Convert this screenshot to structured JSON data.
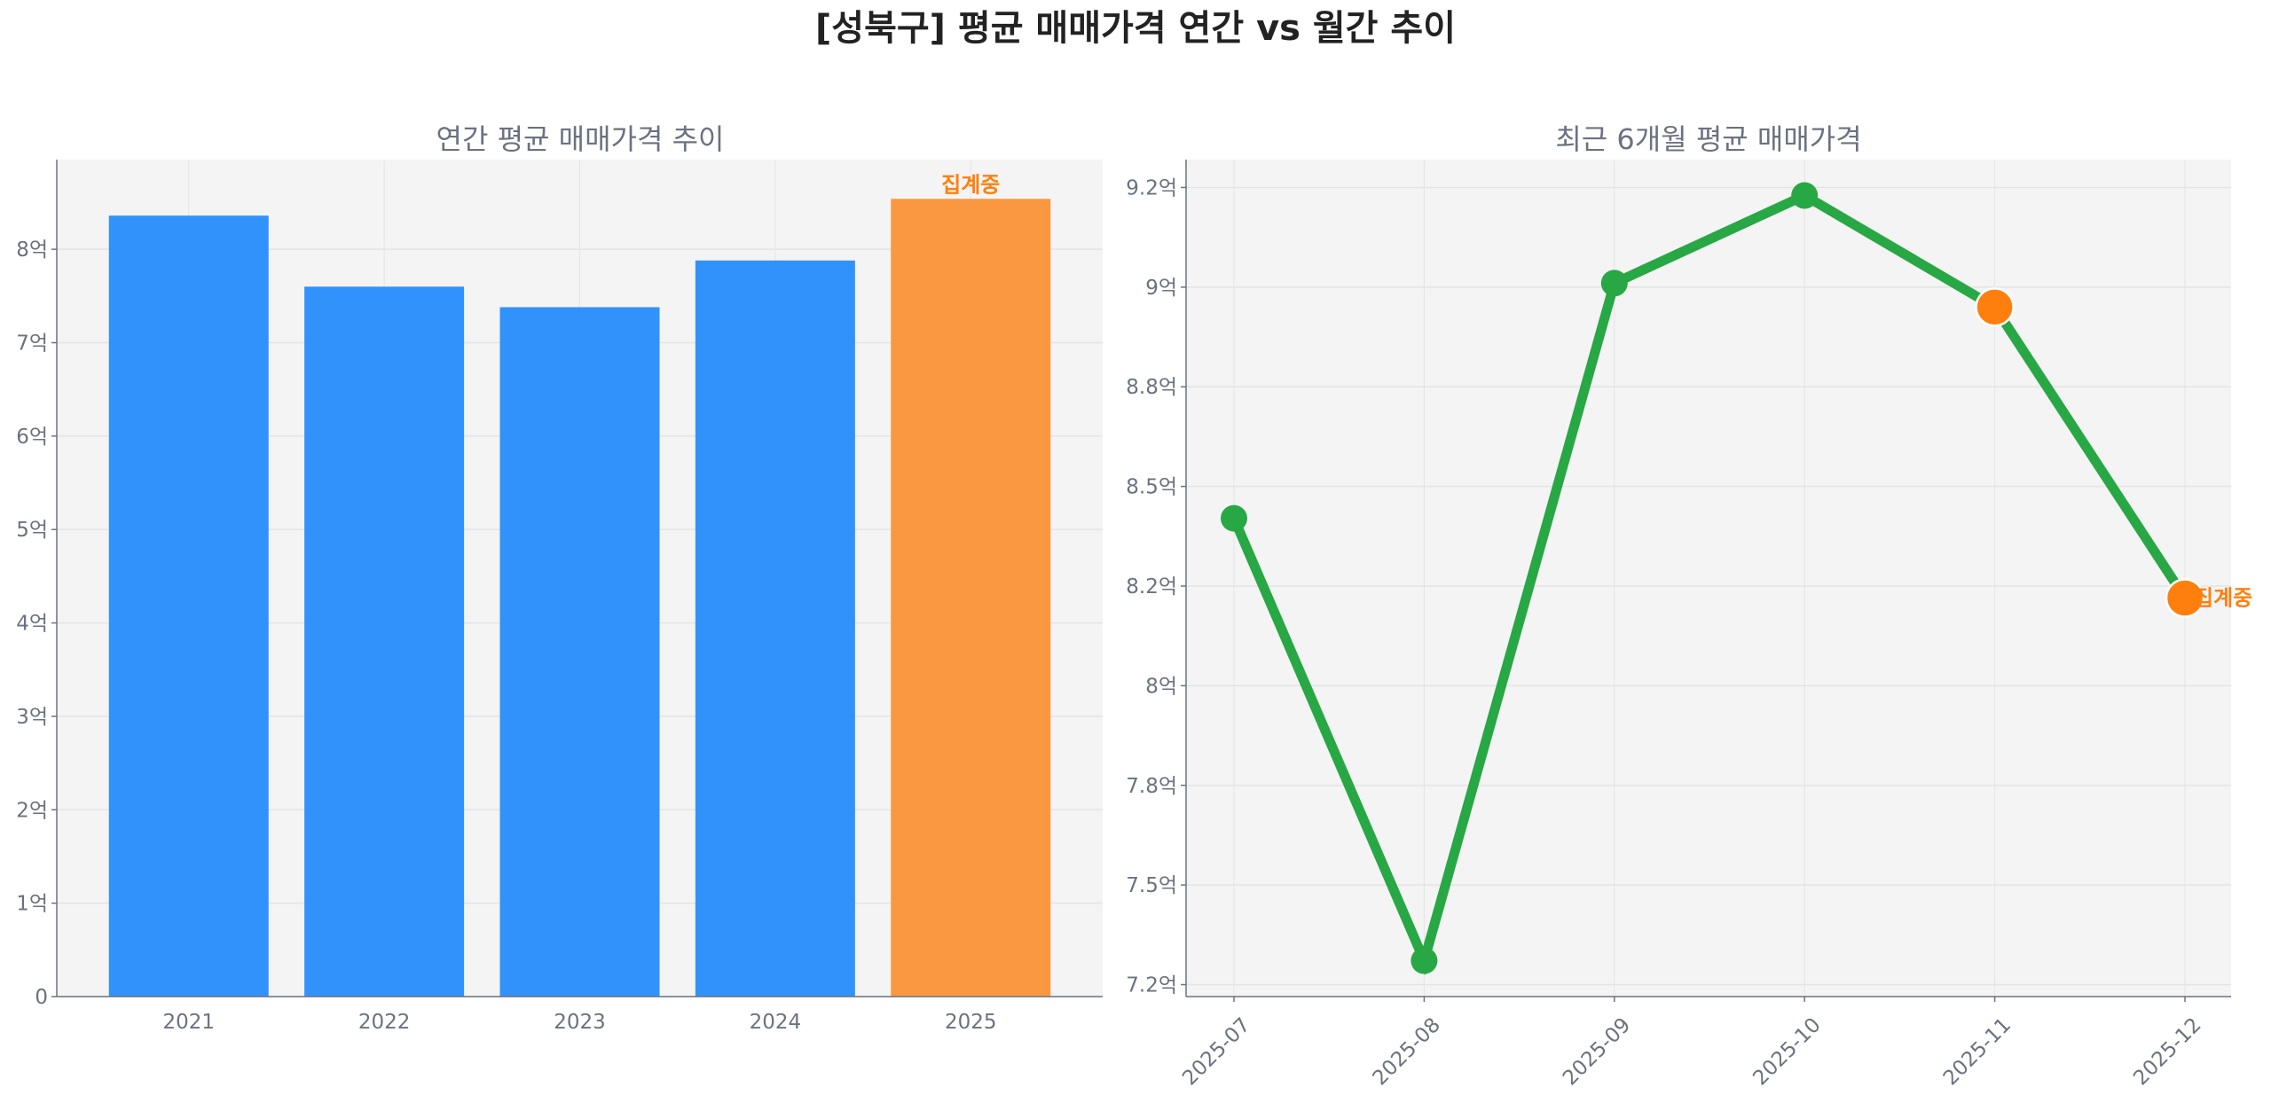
{
  "title": "[성북구] 평균 매매가격 연간 vs 월간 추이",
  "chart_data": [
    {
      "type": "bar",
      "title": "연간 평균 매매가격 추이",
      "categories": [
        "2021",
        "2022",
        "2023",
        "2024",
        "2025"
      ],
      "values": [
        8.36,
        7.6,
        7.38,
        7.88,
        8.54
      ],
      "unit": "억",
      "bar_colors": [
        "#3192fb",
        "#3192fb",
        "#3192fb",
        "#3192fb",
        "#f99841"
      ],
      "annotations": [
        {
          "category": "2025",
          "text": "집계중"
        }
      ],
      "ylim": [
        0,
        8.96
      ],
      "yticks": [
        0,
        1,
        2,
        3,
        4,
        5,
        6,
        7,
        8
      ],
      "ytick_labels": [
        "0",
        "1억",
        "2억",
        "3억",
        "4억",
        "5억",
        "6억",
        "7억",
        "8억"
      ],
      "grid": true,
      "xlabel": "",
      "ylabel": ""
    },
    {
      "type": "line",
      "title": "최근 6개월 평균 매매가격",
      "x": [
        "2025-07",
        "2025-08",
        "2025-09",
        "2025-10",
        "2025-11",
        "2025-12"
      ],
      "values": [
        8.42,
        7.31,
        9.01,
        9.23,
        8.95,
        8.22
      ],
      "unit": "억",
      "line_color": "#28a745",
      "highlight_points": [
        "2025-11",
        "2025-12"
      ],
      "highlight_color": "#ff7f0e",
      "annotations": [
        {
          "x": "2025-12",
          "text": "집계중"
        }
      ],
      "ylim": [
        7.22,
        9.32
      ],
      "yticks": [
        7.25,
        7.5,
        7.75,
        8.0,
        8.25,
        8.5,
        8.75,
        9.0,
        9.25
      ],
      "ytick_labels": [
        "7.2억",
        "7.5억",
        "7.8억",
        "8억",
        "8.2억",
        "8.5억",
        "8.8억",
        "9억",
        "9.2억"
      ],
      "grid": true,
      "xlabel": "",
      "ylabel": ""
    }
  ]
}
